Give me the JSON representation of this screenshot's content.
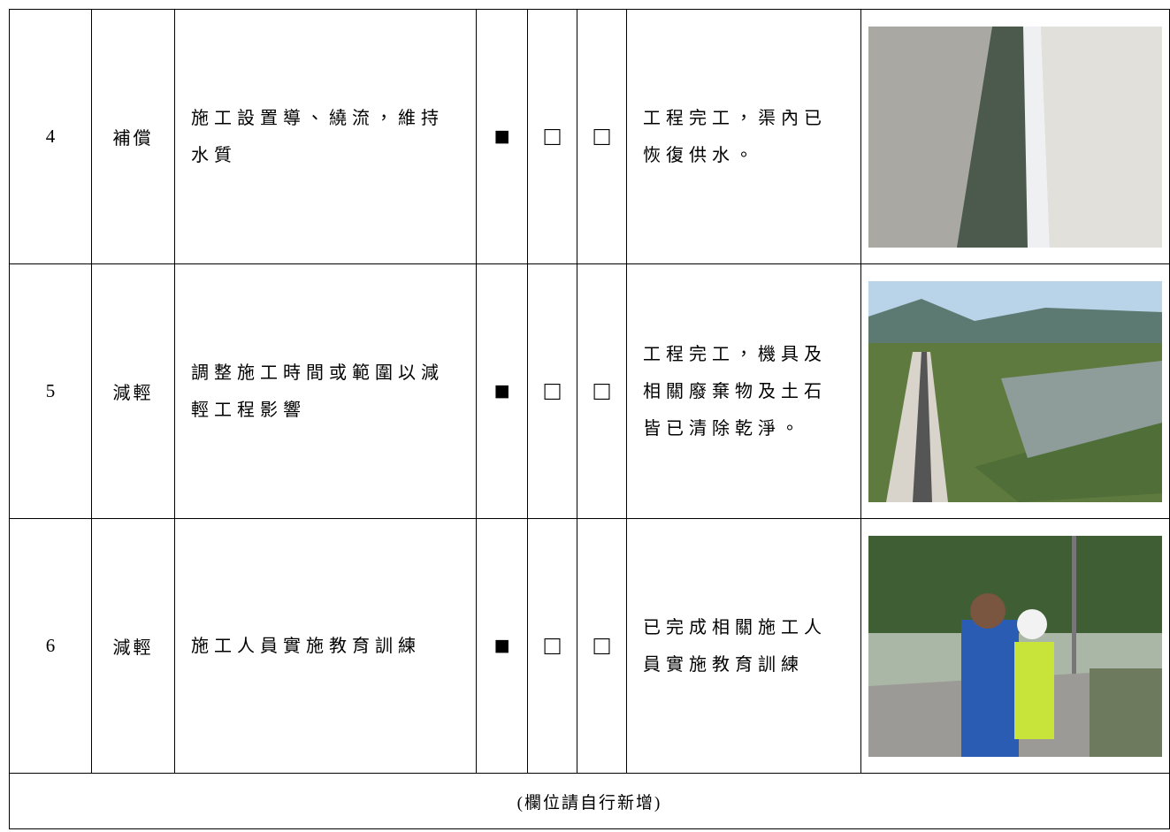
{
  "table": {
    "rows": [
      {
        "no": "4",
        "kind": "補償",
        "measure": "施工設置導、繞流，維持水質",
        "checks": [
          "■",
          "□",
          "□"
        ],
        "result": "工程完工，渠內已恢復供水。"
      },
      {
        "no": "5",
        "kind": "減輕",
        "measure": "調整施工時間或範圍以減輕工程影響",
        "checks": [
          "■",
          "□",
          "□"
        ],
        "result": "工程完工，機具及相關廢棄物及土石皆已清除乾淨。"
      },
      {
        "no": "6",
        "kind": "減輕",
        "measure": "施工人員實施教育訓練",
        "checks": [
          "■",
          "□",
          "□"
        ],
        "result": "已完成相關施工人員實施教育訓練"
      }
    ],
    "footer": "(欄位請自行新增)"
  }
}
